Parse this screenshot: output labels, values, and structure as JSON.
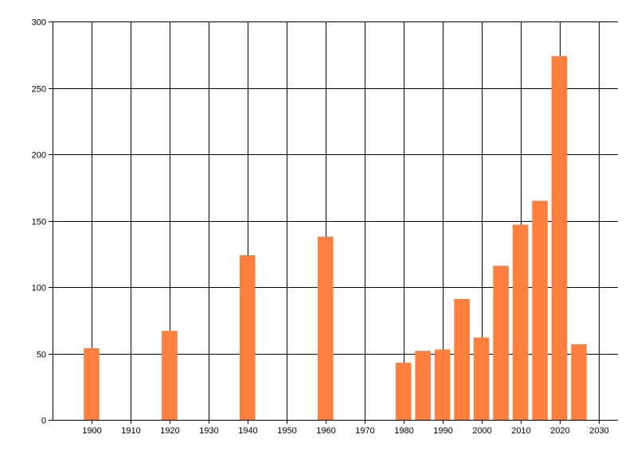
{
  "chart_data": {
    "type": "bar",
    "title": "",
    "xlabel": "",
    "ylabel": "",
    "x": [
      1900,
      1920,
      1940,
      1960,
      1980,
      1985,
      1990,
      1995,
      2000,
      2005,
      2010,
      2015,
      2020,
      2025
    ],
    "values": [
      54,
      67,
      124,
      138,
      43,
      52,
      53,
      91,
      62,
      116,
      147,
      165,
      274,
      57
    ],
    "xlim": [
      1890,
      2035
    ],
    "ylim": [
      0,
      300
    ],
    "x_ticks": [
      1900,
      1910,
      1920,
      1930,
      1940,
      1950,
      1960,
      1970,
      1980,
      1990,
      2000,
      2010,
      2020,
      2030
    ],
    "y_ticks": [
      0,
      50,
      100,
      150,
      200,
      250,
      300
    ],
    "bar_width_years": 4,
    "grid": true,
    "legend": "none",
    "bar_color": "#FF7F3F",
    "grid_color": "#000000"
  }
}
